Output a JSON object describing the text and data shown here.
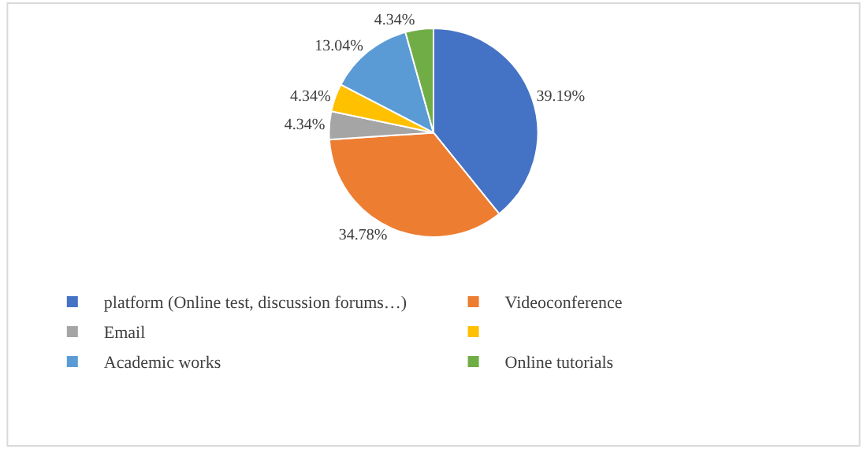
{
  "chart_data": {
    "type": "pie",
    "categories": [
      "platform (Online test, discussion forums…)",
      "Videoconference",
      "Email",
      null,
      "Academic works",
      "Online tutorials"
    ],
    "values": [
      39.19,
      34.78,
      4.34,
      4.34,
      13.04,
      4.34
    ],
    "colors": [
      "#4472c4",
      "#ed7d31",
      "#a5a5a5",
      "#ffc000",
      "#5b9bd5",
      "#70ad47"
    ],
    "value_labels": [
      "39.19%",
      "34.78%",
      "4.34%",
      "4.34%",
      "13.04%",
      "4.34%"
    ],
    "legend": "bottom"
  }
}
